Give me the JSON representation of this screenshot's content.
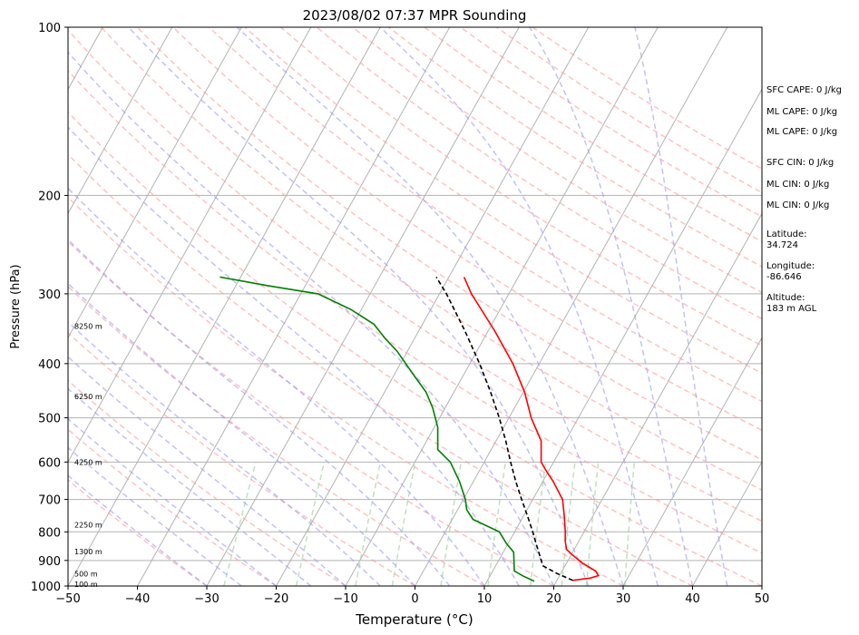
{
  "chart_data": {
    "type": "line",
    "title": "2023/08/02 07:37 MPR Sounding",
    "xlabel": "Temperature (°C)",
    "ylabel": "Pressure (hPa)",
    "xlim": [
      -50,
      50
    ],
    "ylim": [
      1000,
      100
    ],
    "y_scale": "log",
    "skew": true,
    "grid": true,
    "x_ticks": [
      "−50",
      "−40",
      "−30",
      "−20",
      "−10",
      "0",
      "10",
      "20",
      "30",
      "40",
      "50"
    ],
    "y_ticks": [
      "100",
      "200",
      "300",
      "400",
      "500",
      "600",
      "700",
      "800",
      "900",
      "1000"
    ],
    "height_labels": [
      {
        "text": "100 m",
        "p": 993
      },
      {
        "text": "500 m",
        "p": 950
      },
      {
        "text": "1300 m",
        "p": 868
      },
      {
        "text": "2250 m",
        "p": 777
      },
      {
        "text": "4250 m",
        "p": 600
      },
      {
        "text": "6250 m",
        "p": 458
      },
      {
        "text": "8250 m",
        "p": 343
      }
    ],
    "series": [
      {
        "role": "temperature",
        "color": "#ff0000",
        "points": [
          {
            "p": 977,
            "t": 22.3
          },
          {
            "p": 968,
            "t": 24.6
          },
          {
            "p": 958,
            "t": 25.6
          },
          {
            "p": 940,
            "t": 24.8
          },
          {
            "p": 910,
            "t": 22.3
          },
          {
            "p": 880,
            "t": 20.2
          },
          {
            "p": 860,
            "t": 18.9
          },
          {
            "p": 830,
            "t": 18.0
          },
          {
            "p": 800,
            "t": 17.3
          },
          {
            "p": 750,
            "t": 15.9
          },
          {
            "p": 700,
            "t": 14.3
          },
          {
            "p": 650,
            "t": 11.5
          },
          {
            "p": 620,
            "t": 9.5
          },
          {
            "p": 600,
            "t": 8.2
          },
          {
            "p": 550,
            "t": 6.5
          },
          {
            "p": 500,
            "t": 3.2
          },
          {
            "p": 450,
            "t": 0.2
          },
          {
            "p": 400,
            "t": -3.8
          },
          {
            "p": 350,
            "t": -9.0
          },
          {
            "p": 300,
            "t": -15.4
          },
          {
            "p": 280,
            "t": -17.8
          }
        ]
      },
      {
        "role": "dewpoint",
        "color": "#008000",
        "points": [
          {
            "p": 980,
            "t": 16.8
          },
          {
            "p": 960,
            "t": 14.8
          },
          {
            "p": 940,
            "t": 13.1
          },
          {
            "p": 900,
            "t": 12.2
          },
          {
            "p": 870,
            "t": 11.5
          },
          {
            "p": 840,
            "t": 9.8
          },
          {
            "p": 800,
            "t": 7.8
          },
          {
            "p": 760,
            "t": 3.0
          },
          {
            "p": 730,
            "t": 1.3
          },
          {
            "p": 700,
            "t": 0.3
          },
          {
            "p": 650,
            "t": -2.0
          },
          {
            "p": 600,
            "t": -4.9
          },
          {
            "p": 570,
            "t": -7.7
          },
          {
            "p": 520,
            "t": -9.5
          },
          {
            "p": 480,
            "t": -11.8
          },
          {
            "p": 450,
            "t": -14.0
          },
          {
            "p": 420,
            "t": -17.1
          },
          {
            "p": 380,
            "t": -21.5
          },
          {
            "p": 360,
            "t": -24.3
          },
          {
            "p": 340,
            "t": -27.0
          },
          {
            "p": 320,
            "t": -31.5
          },
          {
            "p": 300,
            "t": -37.5
          },
          {
            "p": 290,
            "t": -45.5
          },
          {
            "p": 280,
            "t": -53.0
          }
        ]
      },
      {
        "role": "parcel",
        "color": "#000000",
        "dashed": true,
        "points": [
          {
            "p": 977,
            "t": 22.3
          },
          {
            "p": 950,
            "t": 19.5
          },
          {
            "p": 920,
            "t": 16.8
          },
          {
            "p": 890,
            "t": 15.8
          },
          {
            "p": 850,
            "t": 14.4
          },
          {
            "p": 800,
            "t": 12.6
          },
          {
            "p": 750,
            "t": 10.6
          },
          {
            "p": 700,
            "t": 8.4
          },
          {
            "p": 650,
            "t": 6.1
          },
          {
            "p": 600,
            "t": 3.8
          },
          {
            "p": 550,
            "t": 1.4
          },
          {
            "p": 500,
            "t": -1.4
          },
          {
            "p": 450,
            "t": -4.7
          },
          {
            "p": 400,
            "t": -8.6
          },
          {
            "p": 350,
            "t": -13.3
          },
          {
            "p": 300,
            "t": -19.0
          },
          {
            "p": 280,
            "t": -21.8
          }
        ]
      }
    ],
    "background_lines": {
      "isotherm_color": "#b3b3b3",
      "dry_adiabat_color": "#ff9999",
      "moist_adiabat_color": "#9999ee",
      "mixing_ratio_color": "#99cc99"
    }
  },
  "info_panel": [
    {
      "id": "sfc-cape",
      "text": "SFC CAPE: 0 J/kg"
    },
    {
      "id": "ml-cape-1",
      "text": "ML CAPE: 0 J/kg"
    },
    {
      "id": "ml-cape-2",
      "text": "ML CAPE: 0 J/kg"
    },
    {
      "id": "sfc-cin",
      "text": "SFC CIN: 0 J/kg"
    },
    {
      "id": "ml-cin-1",
      "text": "ML CIN: 0 J/kg"
    },
    {
      "id": "ml-cin-2",
      "text": "ML CIN: 0 J/kg"
    },
    {
      "id": "latitude-label",
      "text": "Latitude:"
    },
    {
      "id": "latitude-value",
      "text": "34.724"
    },
    {
      "id": "longitude-label",
      "text": "Longitude:"
    },
    {
      "id": "longitude-value",
      "text": "-86.646"
    },
    {
      "id": "altitude-label",
      "text": "Altitude:"
    },
    {
      "id": "altitude-value",
      "text": "183 m AGL"
    }
  ]
}
